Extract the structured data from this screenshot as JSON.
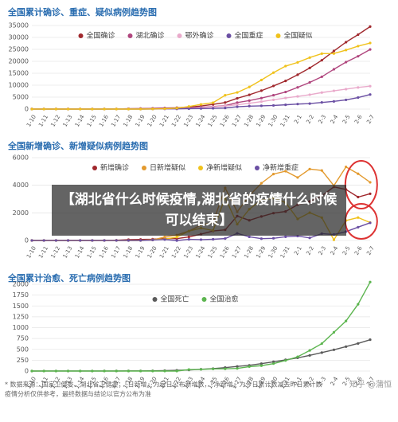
{
  "chart_data": [
    {
      "type": "line",
      "title": "全国累计确诊、重症、疑似病例趋势图",
      "categories": [
        "1-10",
        "1-11",
        "1-12",
        "1-13",
        "1-14",
        "1-15",
        "1-16",
        "1-17",
        "1-18",
        "1-19",
        "1-20",
        "1-21",
        "1-22",
        "1-23",
        "1-24",
        "1-25",
        "1-26",
        "1-27",
        "1-28",
        "1-29",
        "1-30",
        "1-31",
        "2-1",
        "2-2",
        "2-3",
        "2-4",
        "2-5",
        "2-6",
        "2-7"
      ],
      "ylim": [
        0,
        35000
      ],
      "yticks": [
        0,
        5000,
        10000,
        15000,
        20000,
        25000,
        30000,
        35000
      ],
      "grid": true,
      "series": [
        {
          "name": "全国确诊",
          "color": "#a0282d",
          "values": [
            41,
            41,
            41,
            41,
            41,
            41,
            45,
            62,
            121,
            198,
            291,
            440,
            571,
            830,
            1287,
            1975,
            2744,
            4515,
            5974,
            7711,
            9692,
            11791,
            14380,
            17205,
            20438,
            24324,
            28018,
            31161,
            34546
          ]
        },
        {
          "name": "湖北确诊",
          "color": "#b0467e",
          "values": [
            41,
            41,
            41,
            41,
            41,
            41,
            45,
            62,
            121,
            198,
            270,
            375,
            444,
            549,
            729,
            1052,
            1423,
            2714,
            3554,
            4586,
            5806,
            7153,
            9074,
            11177,
            13522,
            16678,
            19665,
            22112,
            24953
          ]
        },
        {
          "name": "鄂外确诊",
          "color": "#e9aacb",
          "values": [
            0,
            0,
            0,
            0,
            0,
            0,
            0,
            0,
            0,
            0,
            21,
            65,
            127,
            281,
            558,
            923,
            1321,
            1801,
            2420,
            3125,
            3886,
            4638,
            5306,
            6028,
            6916,
            7646,
            8353,
            9049,
            9593
          ]
        },
        {
          "name": "全国重症",
          "color": "#6a4fa3",
          "values": [
            0,
            0,
            0,
            0,
            0,
            0,
            0,
            0,
            0,
            0,
            35,
            102,
            95,
            177,
            237,
            324,
            461,
            976,
            1239,
            1370,
            1527,
            1795,
            2110,
            2296,
            2788,
            3219,
            3859,
            4821,
            6101
          ]
        },
        {
          "name": "全国疑似",
          "color": "#f0c21c",
          "values": [
            0,
            0,
            0,
            0,
            0,
            0,
            0,
            0,
            0,
            0,
            54,
            149,
            393,
            1072,
            1965,
            2684,
            5794,
            6973,
            9239,
            12167,
            15238,
            17988,
            19544,
            21558,
            23214,
            23260,
            24702,
            26359,
            27657
          ]
        }
      ]
    },
    {
      "type": "line",
      "title": "全国新增确诊、新增疑似病例趋势图",
      "categories": [
        "1-10",
        "1-11",
        "1-12",
        "1-13",
        "1-14",
        "1-15",
        "1-16",
        "1-17",
        "1-18",
        "1-19",
        "1-20",
        "1-21",
        "1-22",
        "1-23",
        "1-24",
        "1-25",
        "1-26",
        "1-27",
        "1-28",
        "1-29",
        "1-30",
        "1-31",
        "2-1",
        "2-2",
        "2-3",
        "2-4",
        "2-5",
        "2-6",
        "2-7"
      ],
      "ylim": [
        0,
        6000
      ],
      "yticks": [
        0,
        2000,
        4000,
        6000
      ],
      "grid": true,
      "series": [
        {
          "name": "新增确诊",
          "color": "#a0282d",
          "values": [
            0,
            0,
            0,
            0,
            0,
            0,
            4,
            17,
            59,
            77,
            93,
            149,
            131,
            259,
            457,
            688,
            769,
            1771,
            1459,
            1737,
            1981,
            2099,
            2589,
            2825,
            3233,
            3886,
            3694,
            3143,
            3385
          ]
        },
        {
          "name": "日新增疑似",
          "color": "#e39a2e",
          "values": [
            0,
            0,
            0,
            0,
            0,
            0,
            0,
            0,
            0,
            0,
            27,
            257,
            393,
            680,
            1118,
            1309,
            3806,
            2077,
            3248,
            4148,
            4812,
            5019,
            4562,
            5173,
            5072,
            3971,
            5328,
            4833,
            4214
          ]
        },
        {
          "name": "净新增疑似",
          "color": "#f0c21c",
          "values": [
            0,
            0,
            0,
            0,
            0,
            0,
            0,
            0,
            0,
            0,
            54,
            95,
            244,
            679,
            893,
            719,
            3110,
            1179,
            2266,
            2928,
            3071,
            2750,
            1556,
            2014,
            1656,
            46,
            1442,
            1657,
            1298
          ]
        },
        {
          "name": "净新增重症",
          "color": "#6a4fa3",
          "values": [
            0,
            0,
            0,
            0,
            0,
            0,
            0,
            0,
            0,
            0,
            35,
            67,
            -7,
            82,
            60,
            87,
            137,
            515,
            263,
            131,
            157,
            268,
            315,
            186,
            492,
            431,
            640,
            962,
            1280
          ]
        }
      ]
    },
    {
      "type": "line",
      "title": "全国累计治愈、死亡病例趋势图",
      "categories": [
        "1-10",
        "1-11",
        "1-12",
        "1-13",
        "1-14",
        "1-15",
        "1-16",
        "1-17",
        "1-18",
        "1-19",
        "1-20",
        "1-21",
        "1-22",
        "1-23",
        "1-24",
        "1-25",
        "1-26",
        "1-27",
        "1-28",
        "1-29",
        "1-30",
        "1-31",
        "2-1",
        "2-2",
        "2-3",
        "2-4",
        "2-5",
        "2-6",
        "2-7"
      ],
      "ylim": [
        0,
        2000
      ],
      "yticks": [
        0,
        250,
        500,
        750,
        1000,
        1250,
        1500,
        1750,
        2000
      ],
      "grid": true,
      "series": [
        {
          "name": "全国死亡",
          "color": "#5a5a5a",
          "values": [
            0,
            1,
            1,
            1,
            1,
            1,
            2,
            2,
            3,
            3,
            6,
            9,
            17,
            25,
            41,
            56,
            80,
            106,
            132,
            170,
            213,
            259,
            304,
            361,
            425,
            490,
            563,
            636,
            722
          ]
        },
        {
          "name": "全国治愈",
          "color": "#5cb54f",
          "values": [
            0,
            0,
            0,
            0,
            0,
            0,
            0,
            0,
            0,
            0,
            0,
            0,
            0,
            34,
            38,
            49,
            51,
            60,
            103,
            124,
            171,
            243,
            328,
            475,
            632,
            892,
            1153,
            1540,
            2050
          ]
        }
      ]
    }
  ],
  "overlay": "【湖北省什么时候疫情,湖北省的疫情什么时候可以结束】",
  "footer": [
    "* 数据来源：国家卫健委、湖北省卫健委；「日新增」为每日公布新增数，「净新增」为今日累计数减去昨日累计数",
    "疫情分析仅供参考，最终数据与结论以官方公布为准"
  ],
  "watermark": "知乎 @蒲恒"
}
